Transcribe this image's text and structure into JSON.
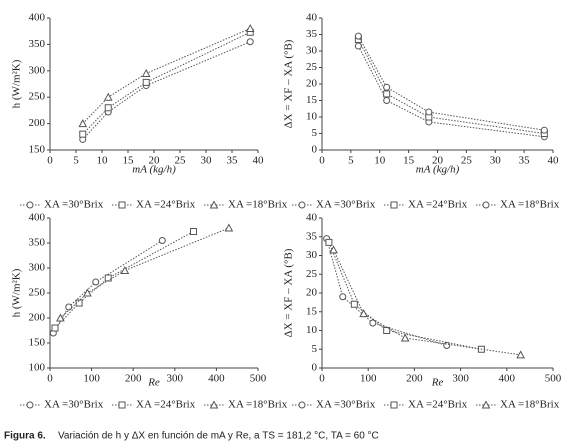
{
  "chart_data": [
    {
      "type": "line",
      "xlabel": "mA (kg/h)",
      "ylabel": "h (W/m²K)",
      "xlim": [
        0,
        40
      ],
      "xticks": [
        0,
        5,
        10,
        15,
        20,
        25,
        30,
        35,
        40
      ],
      "ylim": [
        150,
        400
      ],
      "yticks": [
        150,
        200,
        250,
        300,
        350,
        400
      ],
      "series": [
        {
          "name": "XA =30°Brix",
          "color": "#555555",
          "marker": "circle",
          "x": [
            6.3,
            11.2,
            18.5,
            38.5
          ],
          "values": [
            170,
            222,
            272,
            355
          ]
        },
        {
          "name": "XA =24°Brix",
          "color": "#555555",
          "marker": "square",
          "x": [
            6.3,
            11.2,
            18.5,
            38.5
          ],
          "values": [
            180,
            230,
            278,
            373
          ]
        },
        {
          "name": "XA =18°Brix",
          "color": "#555555",
          "marker": "triangle",
          "x": [
            6.3,
            11.2,
            18.5,
            38.5
          ],
          "values": [
            200,
            250,
            295,
            380
          ]
        }
      ]
    },
    {
      "type": "line",
      "xlabel": "mA (kg/h)",
      "ylabel": "ΔX = XF – XA (°B)",
      "xlim": [
        0,
        40
      ],
      "xticks": [
        0,
        5,
        10,
        15,
        20,
        25,
        30,
        35,
        40
      ],
      "ylim": [
        0,
        40
      ],
      "yticks": [
        0,
        5,
        10,
        15,
        20,
        25,
        30,
        35,
        40
      ],
      "series": [
        {
          "name": "XA =30°Brix",
          "color": "#555555",
          "marker": "circle",
          "x": [
            6.3,
            11.2,
            18.5,
            38.5
          ],
          "values": [
            31.5,
            15,
            8.5,
            4
          ]
        },
        {
          "name": "XA =24°Brix",
          "color": "#555555",
          "marker": "square",
          "x": [
            6.3,
            11.2,
            18.5,
            38.5
          ],
          "values": [
            33.5,
            17,
            10,
            5
          ]
        },
        {
          "name": "XA =18°Brix",
          "color": "#555555",
          "marker": "circle",
          "x": [
            6.3,
            11.2,
            18.5,
            38.5
          ],
          "values": [
            34.5,
            19,
            11.5,
            6
          ]
        }
      ]
    },
    {
      "type": "line",
      "xlabel": "Re",
      "ylabel": "h (W/m²K)",
      "xlim": [
        0,
        500
      ],
      "xticks": [
        0,
        100,
        200,
        300,
        400,
        500
      ],
      "ylim": [
        100,
        400
      ],
      "yticks": [
        100,
        150,
        200,
        250,
        300,
        350,
        400
      ],
      "series": [
        {
          "name": "XA =30°Brix",
          "color": "#555555",
          "marker": "circle",
          "x": [
            8,
            45,
            110,
            270
          ],
          "values": [
            170,
            222,
            272,
            355
          ]
        },
        {
          "name": "XA =24°Brix",
          "color": "#555555",
          "marker": "square",
          "x": [
            12,
            70,
            140,
            345
          ],
          "values": [
            180,
            230,
            280,
            373
          ]
        },
        {
          "name": "XA =18°Brix",
          "color": "#555555",
          "marker": "triangle",
          "x": [
            25,
            90,
            180,
            430
          ],
          "values": [
            200,
            250,
            295,
            380
          ]
        }
      ]
    },
    {
      "type": "line",
      "xlabel": "Re",
      "ylabel": "ΔX = XF – XA (°B)",
      "xlim": [
        0,
        500
      ],
      "xticks": [
        0,
        100,
        200,
        300,
        400,
        500
      ],
      "ylim": [
        0,
        40
      ],
      "yticks": [
        0,
        5,
        10,
        15,
        20,
        25,
        30,
        35,
        40
      ],
      "series": [
        {
          "name": "XA =30°Brix",
          "color": "#555555",
          "marker": "circle",
          "x": [
            10,
            45,
            110,
            270
          ],
          "values": [
            34.5,
            19,
            12,
            6
          ]
        },
        {
          "name": "XA =24°Brix",
          "color": "#555555",
          "marker": "square",
          "x": [
            15,
            70,
            140,
            345
          ],
          "values": [
            33.5,
            17,
            10,
            5
          ]
        },
        {
          "name": "XA =18°Brix",
          "color": "#555555",
          "marker": "triangle",
          "x": [
            25,
            90,
            180,
            430
          ],
          "values": [
            31.5,
            14.5,
            8,
            3.5
          ]
        }
      ]
    }
  ],
  "caption": {
    "label": "Figura 6.",
    "text": "Variación de h y ΔX en función de mA y Re, a TS = 181,2 °C, TA = 60 °C"
  }
}
